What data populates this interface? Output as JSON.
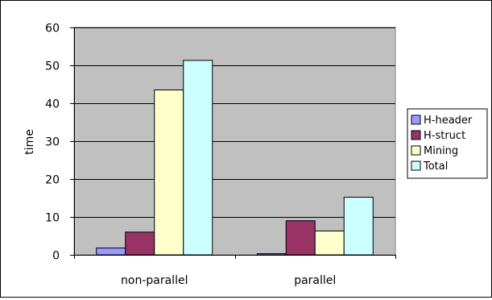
{
  "chart_data": {
    "type": "bar",
    "title": "",
    "xlabel": "",
    "ylabel": "time",
    "ylim": [
      0,
      60
    ],
    "yticks": [
      0,
      10,
      20,
      30,
      40,
      50,
      60
    ],
    "grid": true,
    "legend_position": "right",
    "categories": [
      "non-parallel",
      "parallel"
    ],
    "series": [
      {
        "name": "H-header",
        "color": "#9999ff",
        "values": [
          1.8,
          0.3
        ]
      },
      {
        "name": "H-struct",
        "color": "#993366",
        "values": [
          6.0,
          9.0
        ]
      },
      {
        "name": "Mining",
        "color": "#ffffcc",
        "values": [
          43.5,
          6.3
        ]
      },
      {
        "name": "Total",
        "color": "#ccffff",
        "values": [
          51.3,
          15.2
        ]
      }
    ],
    "plot_background": "#c0c0c0"
  }
}
